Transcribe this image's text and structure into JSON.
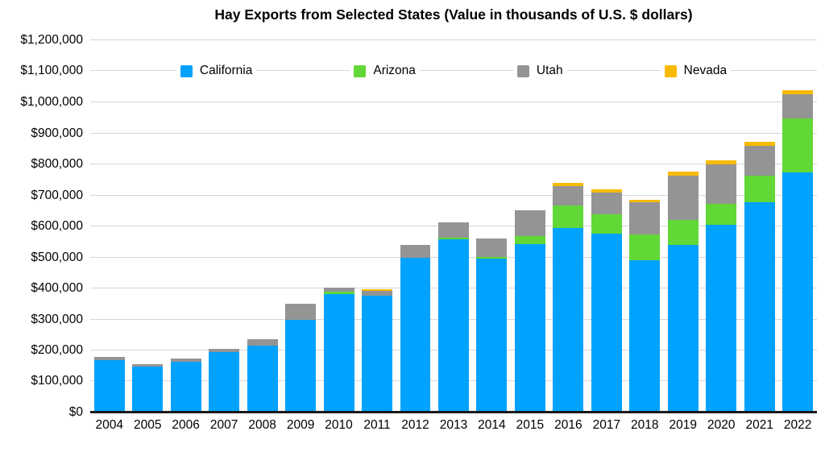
{
  "chart_data": {
    "type": "bar",
    "stacked": true,
    "title": "Hay Exports from Selected States (Value in thousands of U.S. $ dollars)",
    "categories": [
      "2004",
      "2005",
      "2006",
      "2007",
      "2008",
      "2009",
      "2010",
      "2011",
      "2012",
      "2013",
      "2014",
      "2015",
      "2016",
      "2017",
      "2018",
      "2019",
      "2020",
      "2021",
      "2022"
    ],
    "series": [
      {
        "name": "California",
        "color": "#00a2ff",
        "values": [
          170000,
          147000,
          163000,
          194000,
          216000,
          300000,
          383000,
          377000,
          500000,
          558000,
          496000,
          543000,
          595000,
          577000,
          492000,
          540000,
          604000,
          677000,
          775000
        ]
      },
      {
        "name": "Arizona",
        "color": "#61d836",
        "values": [
          0,
          0,
          0,
          0,
          0,
          0,
          7000,
          0,
          0,
          6000,
          6000,
          26000,
          72000,
          61000,
          82000,
          81000,
          70000,
          87000,
          174000
        ]
      },
      {
        "name": "Utah",
        "color": "#949494",
        "values": [
          10000,
          8000,
          10000,
          11000,
          20000,
          50000,
          12000,
          15000,
          41000,
          50000,
          58000,
          82000,
          64000,
          72000,
          103000,
          143000,
          126000,
          97000,
          78000
        ]
      },
      {
        "name": "Nevada",
        "color": "#f8ba00",
        "values": [
          0,
          0,
          0,
          0,
          0,
          0,
          0,
          6000,
          0,
          0,
          0,
          0,
          10000,
          10000,
          10000,
          13000,
          13000,
          13000,
          13000
        ]
      }
    ],
    "ylim": [
      0,
      1200000
    ],
    "ytick_step": 100000,
    "ytick_labels": [
      "$0",
      "$100,000",
      "$200,000",
      "$300,000",
      "$400,000",
      "$500,000",
      "$600,000",
      "$700,000",
      "$800,000",
      "$900,000",
      "$1,000,000",
      "$1,100,000",
      "$1,200,000"
    ],
    "xlabel": "",
    "ylabel": "",
    "grid": true,
    "legend_position": "top",
    "gridline_color": "#d6d6d6",
    "axis_color": "#1a1a1a",
    "text_color": "#000000",
    "background_color": "#ffffff"
  }
}
